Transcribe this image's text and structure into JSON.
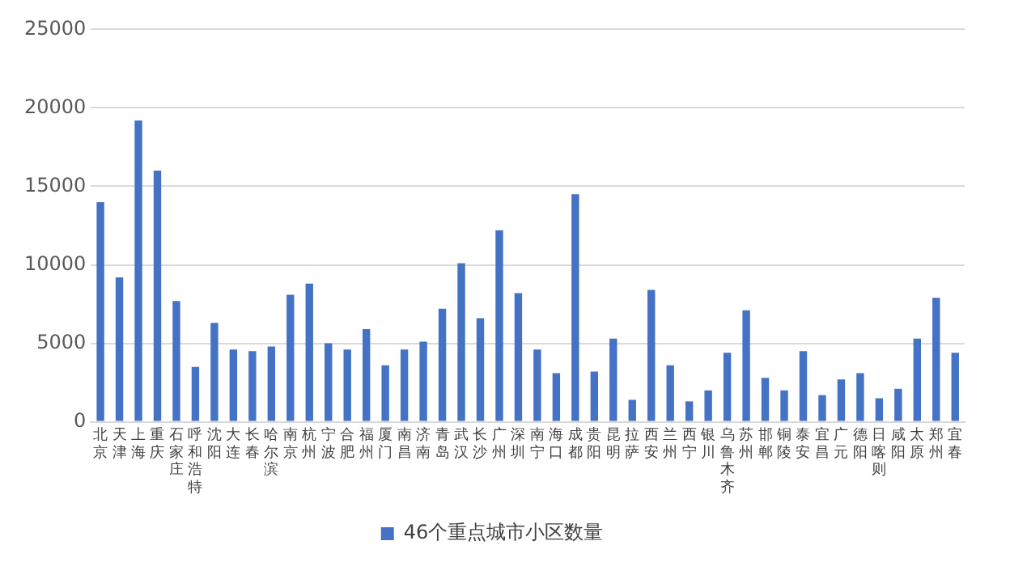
{
  "chart_data": {
    "type": "bar",
    "categories": [
      "北京",
      "天津",
      "上海",
      "重庆",
      "石家庄",
      "呼和浩特",
      "沈阳",
      "大连",
      "长春",
      "哈尔滨",
      "南京",
      "杭州",
      "宁波",
      "合肥",
      "福州",
      "厦门",
      "南昌",
      "济南",
      "青岛",
      "武汉",
      "长沙",
      "广州",
      "深圳",
      "南宁",
      "海口",
      "成都",
      "贵阳",
      "昆明",
      "拉萨",
      "西安",
      "兰州",
      "西宁",
      "银川",
      "乌鲁木齐",
      "苏州",
      "邯郸",
      "铜陵",
      "泰安",
      "宜昌",
      "广元",
      "德阳",
      "日喀则",
      "咸阳",
      "太原",
      "郑州",
      "宜春"
    ],
    "series": [
      {
        "name": "46个重点城市小区数量",
        "color": "#4472c4",
        "values": [
          14000,
          9200,
          19200,
          16000,
          7700,
          3500,
          6300,
          4600,
          4500,
          4800,
          8100,
          8800,
          5000,
          4600,
          5900,
          3600,
          4600,
          5100,
          7200,
          10100,
          6600,
          12200,
          8200,
          4600,
          3100,
          14500,
          3200,
          5300,
          1400,
          8400,
          3600,
          1300,
          2000,
          4400,
          7100,
          2800,
          2000,
          4500,
          1700,
          2700,
          3100,
          1500,
          2100,
          5300,
          7900,
          4400
        ]
      }
    ],
    "ylim": [
      0,
      25000
    ],
    "yticks": [
      0,
      5000,
      10000,
      15000,
      20000,
      25000
    ],
    "grid": "y",
    "legend": "bottom"
  }
}
